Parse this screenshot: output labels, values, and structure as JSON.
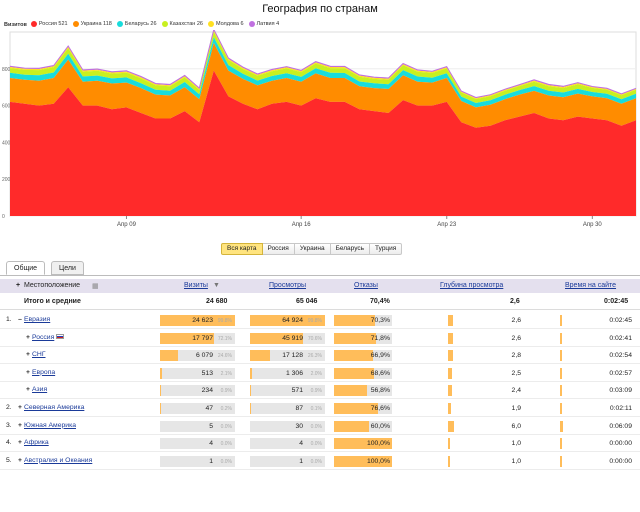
{
  "title": "География по странам",
  "legend": {
    "label": "Визитов",
    "items": [
      {
        "label": "Россия 521",
        "color": "#ff2a2a"
      },
      {
        "label": "Украина 118",
        "color": "#ff8c00"
      },
      {
        "label": "Беларусь 26",
        "color": "#18dcdc"
      },
      {
        "label": "Казахстан 26",
        "color": "#c8f020"
      },
      {
        "label": "Молдова 6",
        "color": "#ffe020"
      },
      {
        "label": "Латвия 4",
        "color": "#c070e0"
      }
    ]
  },
  "chart_data": {
    "type": "area",
    "stacked": true,
    "title": "",
    "xlabel": "",
    "ylabel": "",
    "x_tick_labels": [
      "Апр 09",
      "Апр 16",
      "Апр 23",
      "Апр 30"
    ],
    "y_tick_labels": [
      "0",
      "200",
      "400",
      "600",
      "800"
    ],
    "ylim": [
      0,
      1000
    ],
    "grid": true,
    "series": [
      {
        "name": "Россия 521",
        "color": "#ff2a2a",
        "values": [
          620,
          610,
          600,
          610,
          700,
          600,
          600,
          580,
          590,
          560,
          530,
          530,
          570,
          510,
          790,
          650,
          610,
          580,
          610,
          620,
          600,
          640,
          620,
          620,
          580,
          570,
          560,
          630,
          600,
          600,
          620,
          510,
          480,
          490,
          520,
          540,
          560,
          530,
          520,
          540,
          530,
          520,
          490,
          520
        ]
      },
      {
        "name": "Украина 118",
        "color": "#ff8c00",
        "values": [
          130,
          130,
          135,
          140,
          150,
          130,
          135,
          140,
          135,
          135,
          130,
          125,
          130,
          125,
          150,
          140,
          135,
          130,
          125,
          130,
          130,
          135,
          130,
          130,
          125,
          125,
          130,
          135,
          130,
          125,
          130,
          115,
          110,
          115,
          115,
          120,
          120,
          125,
          125,
          125,
          120,
          120,
          120,
          120
        ]
      },
      {
        "name": "Беларусь 26",
        "color": "#18dcdc",
        "values": [
          28,
          28,
          30,
          30,
          32,
          28,
          28,
          28,
          28,
          27,
          26,
          26,
          28,
          26,
          32,
          30,
          28,
          26,
          26,
          26,
          26,
          28,
          28,
          27,
          26,
          26,
          26,
          28,
          28,
          26,
          26,
          24,
          24,
          24,
          24,
          24,
          26,
          26,
          26,
          26,
          24,
          24,
          24,
          24
        ]
      },
      {
        "name": "Казахстан 26",
        "color": "#c8f020",
        "values": [
          26,
          26,
          28,
          28,
          30,
          26,
          26,
          26,
          26,
          26,
          24,
          24,
          26,
          24,
          30,
          28,
          26,
          26,
          26,
          26,
          26,
          26,
          26,
          26,
          26,
          24,
          24,
          26,
          26,
          26,
          26,
          22,
          22,
          22,
          22,
          22,
          24,
          24,
          24,
          24,
          22,
          22,
          22,
          22
        ]
      },
      {
        "name": "Молдова 6",
        "color": "#ffe020",
        "values": [
          6,
          6,
          6,
          6,
          7,
          6,
          6,
          6,
          6,
          6,
          6,
          6,
          6,
          6,
          7,
          6,
          6,
          6,
          6,
          6,
          6,
          6,
          6,
          6,
          6,
          6,
          6,
          6,
          6,
          6,
          6,
          5,
          5,
          5,
          5,
          5,
          6,
          6,
          6,
          6,
          5,
          5,
          5,
          5
        ]
      },
      {
        "name": "Латвия 4",
        "color": "#c070e0",
        "values": [
          4,
          4,
          4,
          4,
          5,
          4,
          4,
          4,
          4,
          4,
          4,
          4,
          4,
          4,
          5,
          4,
          4,
          4,
          4,
          4,
          4,
          4,
          4,
          4,
          4,
          4,
          4,
          4,
          4,
          4,
          4,
          3,
          3,
          3,
          3,
          3,
          4,
          4,
          4,
          4,
          3,
          3,
          3,
          3
        ]
      }
    ]
  },
  "region_tabs": [
    "Вся карта",
    "Россия",
    "Украина",
    "Беларусь",
    "Турция"
  ],
  "view_tabs": [
    "Общие",
    "Цели"
  ],
  "table": {
    "headers": {
      "location": "Местоположение",
      "visits": "Визиты",
      "views": "Просмотры",
      "bounces": "Отказы",
      "depth": "Глубина просмотра",
      "time": "Время на сайте"
    },
    "totals": {
      "label": "Итого и средние",
      "visits": "24 680",
      "views": "65 046",
      "bounces": "70,4%",
      "depth": "2,6",
      "time": "0:02:45"
    },
    "rows": [
      {
        "num": "1.",
        "pm": "–",
        "name": "Евразия",
        "indent": 0,
        "visits": "24 623",
        "visits_pct": "99.8%",
        "visits_f": 0.998,
        "views": "64 924",
        "views_pct": "99.8%",
        "views_f": 0.998,
        "bounces": "70,3%",
        "bounce_f": 0.703,
        "depth": "2,6",
        "depth_f": 0.06,
        "time": "0:02:45",
        "time_f": 0.03
      },
      {
        "num": "",
        "pm": "+",
        "name": "Россия",
        "flag": true,
        "indent": 1,
        "visits": "17 797",
        "visits_pct": "72.1%",
        "visits_f": 0.721,
        "views": "45 919",
        "views_pct": "70.6%",
        "views_f": 0.706,
        "bounces": "71,8%",
        "bounce_f": 0.718,
        "depth": "2,6",
        "depth_f": 0.06,
        "time": "0:02:41",
        "time_f": 0.03
      },
      {
        "num": "",
        "pm": "+",
        "name": "СНГ",
        "indent": 1,
        "visits": "6 079",
        "visits_pct": "24.6%",
        "visits_f": 0.246,
        "views": "17 128",
        "views_pct": "26.3%",
        "views_f": 0.263,
        "bounces": "66,9%",
        "bounce_f": 0.669,
        "depth": "2,8",
        "depth_f": 0.06,
        "time": "0:02:54",
        "time_f": 0.03
      },
      {
        "num": "",
        "pm": "+",
        "name": "Европа",
        "indent": 1,
        "visits": "513",
        "visits_pct": "2.1%",
        "visits_f": 0.021,
        "views": "1 306",
        "views_pct": "2.0%",
        "views_f": 0.02,
        "bounces": "68,6%",
        "bounce_f": 0.686,
        "depth": "2,5",
        "depth_f": 0.05,
        "time": "0:02:57",
        "time_f": 0.03
      },
      {
        "num": "",
        "pm": "+",
        "name": "Азия",
        "indent": 1,
        "visits": "234",
        "visits_pct": "0.9%",
        "visits_f": 0.009,
        "views": "571",
        "views_pct": "0.9%",
        "views_f": 0.009,
        "bounces": "56,8%",
        "bounce_f": 0.568,
        "depth": "2,4",
        "depth_f": 0.05,
        "time": "0:03:09",
        "time_f": 0.03
      },
      {
        "num": "2.",
        "pm": "+",
        "name": "Северная Америка",
        "indent": 0,
        "visits": "47",
        "visits_pct": "0.2%",
        "visits_f": 0.002,
        "views": "87",
        "views_pct": "0.1%",
        "views_f": 0.001,
        "bounces": "76,6%",
        "bounce_f": 0.766,
        "depth": "1,9",
        "depth_f": 0.04,
        "time": "0:02:11",
        "time_f": 0.03
      },
      {
        "num": "3.",
        "pm": "+",
        "name": "Южная Америка",
        "indent": 0,
        "visits": "5",
        "visits_pct": "0.0%",
        "visits_f": 0.0,
        "views": "30",
        "views_pct": "0.0%",
        "views_f": 0.0,
        "bounces": "60,0%",
        "bounce_f": 0.6,
        "depth": "6,0",
        "depth_f": 0.08,
        "time": "0:06:09",
        "time_f": 0.035
      },
      {
        "num": "4.",
        "pm": "+",
        "name": "Африка",
        "indent": 0,
        "visits": "4",
        "visits_pct": "0.0%",
        "visits_f": 0.0,
        "views": "4",
        "views_pct": "0.0%",
        "views_f": 0.0,
        "bounces": "100,0%",
        "bounce_f": 1.0,
        "depth": "1,0",
        "depth_f": 0.02,
        "time": "0:00:00",
        "time_f": 0.0
      },
      {
        "num": "5.",
        "pm": "+",
        "name": "Австралия и Океания",
        "indent": 0,
        "visits": "1",
        "visits_pct": "0.0%",
        "visits_f": 0.0,
        "views": "1",
        "views_pct": "0.0%",
        "views_f": 0.0,
        "bounces": "100,0%",
        "bounce_f": 1.0,
        "depth": "1,0",
        "depth_f": 0.02,
        "time": "0:00:00",
        "time_f": 0.0
      }
    ]
  }
}
